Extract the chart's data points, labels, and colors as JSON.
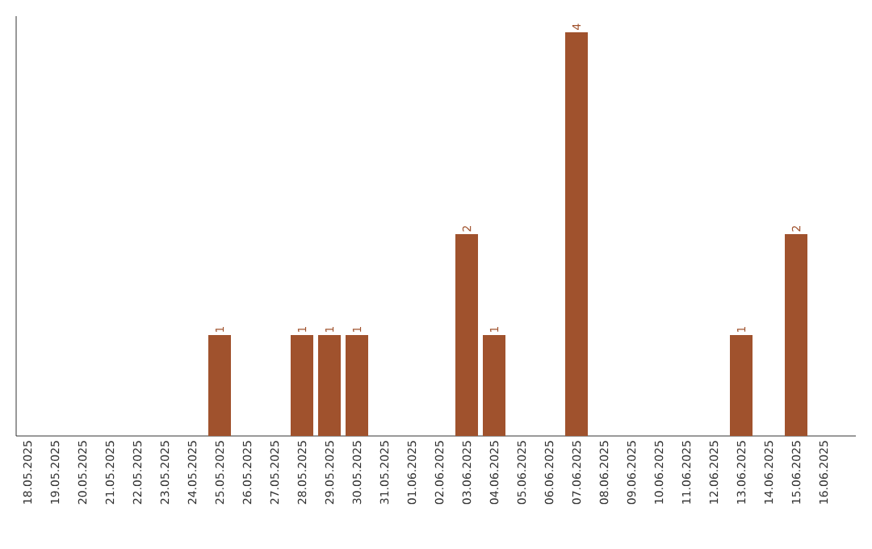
{
  "chart_data": {
    "type": "bar",
    "categories": [
      "18.05.2025",
      "19.05.2025",
      "20.05.2025",
      "21.05.2025",
      "22.05.2025",
      "23.05.2025",
      "24.05.2025",
      "25.05.2025",
      "26.05.2025",
      "27.05.2025",
      "28.05.2025",
      "29.05.2025",
      "30.05.2025",
      "31.05.2025",
      "01.06.2025",
      "02.06.2025",
      "03.06.2025",
      "04.06.2025",
      "05.06.2025",
      "06.06.2025",
      "07.06.2025",
      "08.06.2025",
      "09.06.2025",
      "10.06.2025",
      "11.06.2025",
      "12.06.2025",
      "13.06.2025",
      "14.06.2025",
      "15.06.2025",
      "16.06.2025"
    ],
    "values": [
      0,
      0,
      0,
      0,
      0,
      0,
      0,
      1,
      0,
      0,
      1,
      1,
      1,
      0,
      0,
      0,
      2,
      1,
      0,
      0,
      4,
      0,
      0,
      0,
      0,
      0,
      1,
      0,
      2,
      0
    ],
    "value_labels": [
      null,
      null,
      null,
      null,
      null,
      null,
      null,
      "1",
      null,
      null,
      "1",
      "1",
      "1",
      null,
      null,
      null,
      "2",
      "1",
      null,
      null,
      "4",
      null,
      null,
      null,
      null,
      null,
      "1",
      null,
      "2",
      null
    ],
    "color": "#a0522d",
    "ylim": [
      0,
      4.16
    ]
  }
}
